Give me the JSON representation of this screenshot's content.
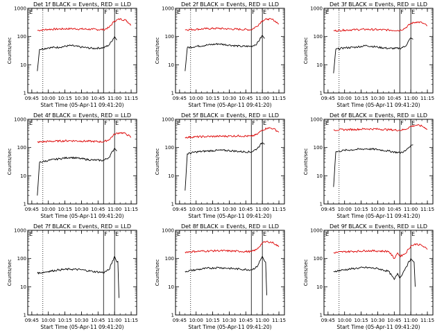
{
  "chart_data": [
    {
      "type": "line",
      "title": "Det 1f BLACK = Events, RED = LLD",
      "xlabel": "Start Time (05-Apr-11 09:41:20)",
      "ylabel": "Counts/sec",
      "x_ticks": [
        "09:45",
        "10:00",
        "10:15",
        "10:30",
        "10:45",
        "11:00",
        "11:15"
      ],
      "y_ticks": [
        "1",
        "10",
        "100",
        "1000"
      ],
      "xlim": [
        "09:41:20",
        "11:20"
      ],
      "ylim": [
        1,
        1000
      ],
      "y_scale": "log",
      "markers": [
        "E",
        "F",
        "E"
      ],
      "series": [
        {
          "name": "RED",
          "color": "#dd0000",
          "x": [
            "09:50",
            "10:00",
            "10:10",
            "10:20",
            "10:30",
            "10:40",
            "10:50",
            "10:55",
            "11:00",
            "11:05",
            "11:10",
            "11:15"
          ],
          "y": [
            165,
            180,
            185,
            190,
            185,
            180,
            175,
            210,
            360,
            420,
            380,
            260
          ]
        },
        {
          "name": "BLACK",
          "color": "#000000",
          "x": [
            "09:50",
            "09:52",
            "10:00",
            "10:10",
            "10:20",
            "10:30",
            "10:40",
            "10:50",
            "10:55",
            "11:00",
            "11:02"
          ],
          "y": [
            6,
            35,
            40,
            42,
            48,
            42,
            38,
            40,
            50,
            100,
            75
          ]
        }
      ]
    },
    {
      "type": "line",
      "title": "Det 2f BLACK = Events, RED = LLD",
      "xlabel": "Start Time (05-Apr-11 09:41:20)",
      "ylabel": "Counts/sec",
      "x_ticks": [
        "09:45",
        "10:00",
        "10:15",
        "10:30",
        "10:45",
        "11:00",
        "11:15"
      ],
      "y_ticks": [
        "1",
        "10",
        "100",
        "1000"
      ],
      "xlim": [
        "09:41:20",
        "11:20"
      ],
      "ylim": [
        1,
        1000
      ],
      "y_scale": "log",
      "markers": [
        "E",
        "F",
        "E"
      ],
      "series": [
        {
          "name": "RED",
          "color": "#dd0000",
          "x": [
            "09:50",
            "10:00",
            "10:10",
            "10:20",
            "10:30",
            "10:40",
            "10:50",
            "10:55",
            "11:00",
            "11:05",
            "11:10",
            "11:15"
          ],
          "y": [
            175,
            180,
            190,
            195,
            185,
            180,
            175,
            230,
            370,
            420,
            390,
            280
          ]
        },
        {
          "name": "BLACK",
          "color": "#000000",
          "x": [
            "09:50",
            "09:52",
            "10:00",
            "10:10",
            "10:20",
            "10:30",
            "10:40",
            "10:50",
            "10:55",
            "11:00",
            "11:02"
          ],
          "y": [
            6,
            40,
            45,
            50,
            55,
            50,
            45,
            45,
            55,
            110,
            85
          ]
        }
      ]
    },
    {
      "type": "line",
      "title": "Det 3f BLACK = Events, RED = LLD",
      "xlabel": "Start Time (05-Apr-11 09:41:20)",
      "ylabel": "Counts/sec",
      "x_ticks": [
        "09:45",
        "10:00",
        "10:15",
        "10:30",
        "10:45",
        "11:00",
        "11:15"
      ],
      "y_ticks": [
        "1",
        "10",
        "100",
        "1000"
      ],
      "xlim": [
        "09:41:20",
        "11:20"
      ],
      "ylim": [
        1,
        1000
      ],
      "y_scale": "log",
      "markers": [
        "E",
        "F",
        "E"
      ],
      "series": [
        {
          "name": "RED",
          "color": "#dd0000",
          "x": [
            "09:50",
            "10:00",
            "10:10",
            "10:20",
            "10:30",
            "10:40",
            "10:50",
            "10:55",
            "11:00",
            "11:05",
            "11:10",
            "11:15"
          ],
          "y": [
            160,
            170,
            175,
            180,
            175,
            170,
            165,
            200,
            290,
            330,
            310,
            240
          ]
        },
        {
          "name": "BLACK",
          "color": "#000000",
          "x": [
            "09:50",
            "09:52",
            "10:00",
            "10:10",
            "10:20",
            "10:30",
            "10:40",
            "10:50",
            "10:55",
            "11:00",
            "11:02"
          ],
          "y": [
            5,
            35,
            40,
            42,
            48,
            42,
            38,
            38,
            45,
            90,
            80
          ]
        }
      ]
    },
    {
      "type": "line",
      "title": "Det 4f BLACK = Events, RED = LLD",
      "xlabel": "Start Time (05-Apr-11 09:41:20)",
      "ylabel": "Counts/sec",
      "x_ticks": [
        "09:45",
        "10:00",
        "10:15",
        "10:30",
        "10:45",
        "11:00",
        "11:15"
      ],
      "y_ticks": [
        "1",
        "10",
        "100",
        "1000"
      ],
      "xlim": [
        "09:41:20",
        "11:20"
      ],
      "ylim": [
        1,
        1000
      ],
      "y_scale": "log",
      "markers": [
        "E",
        "F",
        "E"
      ],
      "series": [
        {
          "name": "RED",
          "color": "#dd0000",
          "x": [
            "09:50",
            "10:00",
            "10:10",
            "10:20",
            "10:30",
            "10:40",
            "10:50",
            "10:55",
            "11:00",
            "11:05",
            "11:10",
            "11:15"
          ],
          "y": [
            155,
            165,
            170,
            175,
            170,
            165,
            160,
            190,
            300,
            340,
            310,
            230
          ]
        },
        {
          "name": "BLACK",
          "color": "#000000",
          "x": [
            "09:50",
            "09:52",
            "10:00",
            "10:10",
            "10:20",
            "10:30",
            "10:40",
            "10:50",
            "10:55",
            "11:00",
            "11:02"
          ],
          "y": [
            2,
            30,
            35,
            40,
            45,
            40,
            36,
            35,
            45,
            95,
            75
          ]
        }
      ]
    },
    {
      "type": "line",
      "title": "Det 5f BLACK = Events, RED = LLD",
      "xlabel": "Start Time (05-Apr-11 09:41:20)",
      "ylabel": "Counts/sec",
      "x_ticks": [
        "09:45",
        "10:00",
        "10:15",
        "10:30",
        "10:45",
        "11:00",
        "11:15"
      ],
      "y_ticks": [
        "1",
        "10",
        "100",
        "1000"
      ],
      "xlim": [
        "09:41:20",
        "11:20"
      ],
      "ylim": [
        1,
        1000
      ],
      "y_scale": "log",
      "markers": [
        "E",
        "F",
        "E"
      ],
      "series": [
        {
          "name": "RED",
          "color": "#dd0000",
          "x": [
            "09:50",
            "10:00",
            "10:10",
            "10:20",
            "10:30",
            "10:40",
            "10:50",
            "10:55",
            "11:00",
            "11:05",
            "11:10",
            "11:15"
          ],
          "y": [
            230,
            240,
            245,
            250,
            255,
            260,
            250,
            290,
            420,
            500,
            470,
            350
          ]
        },
        {
          "name": "BLACK",
          "color": "#000000",
          "x": [
            "09:50",
            "09:52",
            "10:00",
            "10:10",
            "10:20",
            "10:30",
            "10:40",
            "10:50",
            "10:55",
            "11:00",
            "11:02"
          ],
          "y": [
            3,
            60,
            70,
            75,
            80,
            78,
            72,
            70,
            90,
            150,
            130
          ]
        }
      ]
    },
    {
      "type": "line",
      "title": "Det 6f BLACK = Events, RED = LLD",
      "xlabel": "Start Time (05-Apr-11 09:41:20)",
      "ylabel": "Counts/sec",
      "x_ticks": [
        "09:45",
        "10:00",
        "10:15",
        "10:30",
        "10:45",
        "11:00",
        "11:15"
      ],
      "y_ticks": [
        "1",
        "10",
        "100",
        "1000"
      ],
      "xlim": [
        "09:41:20",
        "11:20"
      ],
      "ylim": [
        1,
        1000
      ],
      "y_scale": "log",
      "markers": [
        "E",
        "F",
        "E"
      ],
      "series": [
        {
          "name": "RED",
          "color": "#dd0000",
          "x": [
            "09:50",
            "10:00",
            "10:10",
            "10:20",
            "10:30",
            "10:40",
            "10:50",
            "10:55",
            "11:00",
            "11:05",
            "11:10",
            "11:15"
          ],
          "y": [
            420,
            430,
            440,
            460,
            450,
            430,
            410,
            440,
            560,
            620,
            580,
            450
          ]
        },
        {
          "name": "BLACK",
          "color": "#000000",
          "x": [
            "09:50",
            "09:52",
            "10:00",
            "10:10",
            "10:20",
            "10:30",
            "10:40",
            "10:50",
            "10:55",
            "11:00",
            "11:02"
          ],
          "y": [
            4,
            70,
            80,
            85,
            90,
            85,
            75,
            65,
            75,
            120,
            125
          ]
        }
      ]
    },
    {
      "type": "line",
      "title": "Det 7f BLACK = Events, RED = LLD",
      "xlabel": "Start Time (05-Apr-11 09:41:20)",
      "ylabel": "Counts/sec",
      "x_ticks": [
        "09:45",
        "10:00",
        "10:15",
        "10:30",
        "10:45",
        "11:00",
        "11:15"
      ],
      "y_ticks": [
        "1",
        "10",
        "100",
        "1000"
      ],
      "xlim": [
        "09:41:20",
        "11:20"
      ],
      "ylim": [
        1,
        1000
      ],
      "y_scale": "log",
      "markers": [
        "E",
        "F",
        "E"
      ],
      "series": [
        {
          "name": "BLACK",
          "color": "#000000",
          "x": [
            "09:50",
            "10:00",
            "10:10",
            "10:20",
            "10:30",
            "10:40",
            "10:50",
            "10:55",
            "11:00",
            "11:02",
            "11:03",
            "11:04"
          ],
          "y": [
            30,
            35,
            40,
            42,
            40,
            35,
            32,
            40,
            120,
            75,
            80,
            4
          ]
        }
      ]
    },
    {
      "type": "line",
      "title": "Det 8f BLACK = Events, RED = LLD",
      "xlabel": "Start Time (05-Apr-11 09:41:20)",
      "ylabel": "Counts/sec",
      "x_ticks": [
        "09:45",
        "10:00",
        "10:15",
        "10:30",
        "10:45",
        "11:00",
        "11:15"
      ],
      "y_ticks": [
        "1",
        "10",
        "100",
        "1000"
      ],
      "xlim": [
        "09:41:20",
        "11:20"
      ],
      "ylim": [
        1,
        1000
      ],
      "y_scale": "log",
      "markers": [
        "E",
        "F",
        "E"
      ],
      "series": [
        {
          "name": "RED",
          "color": "#dd0000",
          "x": [
            "09:50",
            "10:00",
            "10:10",
            "10:20",
            "10:30",
            "10:40",
            "10:50",
            "10:55",
            "11:00",
            "11:05",
            "11:10",
            "11:15"
          ],
          "y": [
            170,
            180,
            185,
            190,
            185,
            180,
            175,
            210,
            360,
            400,
            360,
            260
          ]
        },
        {
          "name": "BLACK",
          "color": "#000000",
          "x": [
            "09:50",
            "10:00",
            "10:10",
            "10:20",
            "10:30",
            "10:40",
            "10:50",
            "10:55",
            "11:00",
            "11:02",
            "11:03",
            "11:04"
          ],
          "y": [
            35,
            40,
            45,
            48,
            45,
            42,
            40,
            50,
            120,
            80,
            75,
            5
          ]
        }
      ]
    },
    {
      "type": "line",
      "title": "Det 9f BLACK = Events, RED = LLD",
      "xlabel": "Start Time (05-Apr-11 09:41:20)",
      "ylabel": "Counts/sec",
      "x_ticks": [
        "09:45",
        "10:00",
        "10:15",
        "10:30",
        "10:45",
        "11:00",
        "11:15"
      ],
      "y_ticks": [
        "1",
        "10",
        "100",
        "1000"
      ],
      "xlim": [
        "09:41:20",
        "11:20"
      ],
      "ylim": [
        1,
        1000
      ],
      "y_scale": "log",
      "markers": [
        "E",
        "F",
        "E"
      ],
      "series": [
        {
          "name": "RED",
          "color": "#dd0000",
          "x": [
            "09:50",
            "10:00",
            "10:10",
            "10:20",
            "10:30",
            "10:40",
            "10:45",
            "10:48",
            "10:50",
            "10:55",
            "11:00",
            "11:05",
            "11:10",
            "11:15"
          ],
          "y": [
            160,
            175,
            180,
            190,
            185,
            180,
            100,
            160,
            120,
            150,
            280,
            330,
            290,
            210
          ]
        },
        {
          "name": "BLACK",
          "color": "#000000",
          "x": [
            "09:50",
            "10:00",
            "10:10",
            "10:20",
            "10:30",
            "10:40",
            "10:45",
            "10:48",
            "10:50",
            "10:55",
            "11:00",
            "11:02",
            "11:03",
            "11:04"
          ],
          "y": [
            35,
            40,
            45,
            48,
            44,
            35,
            18,
            30,
            20,
            45,
            100,
            80,
            75,
            10
          ]
        }
      ]
    }
  ]
}
